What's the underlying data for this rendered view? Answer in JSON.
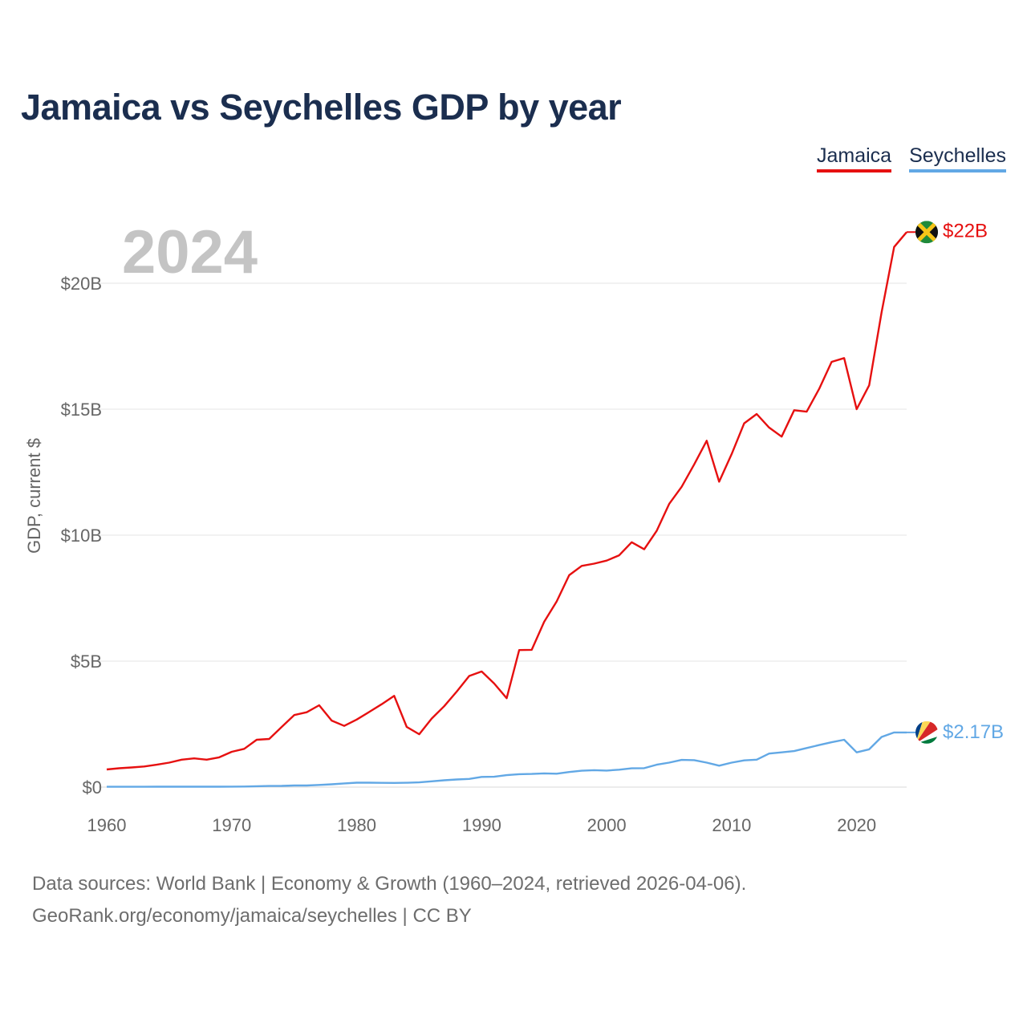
{
  "title": "Jamaica vs Seychelles GDP by year",
  "legend": [
    {
      "name": "Jamaica",
      "color": "#e61010"
    },
    {
      "name": "Seychelles",
      "color": "#62a8e5"
    }
  ],
  "footer": {
    "line1": "Data sources: World Bank | Economy & Growth (1960–2024, retrieved 2026-04-06).",
    "line2": "GeoRank.org/economy/jamaica/seychelles | CC BY"
  },
  "chart_data": {
    "type": "line",
    "title": "Jamaica vs Seychelles GDP by year",
    "xlabel": "",
    "ylabel": "GDP, current $",
    "year_label": "2024",
    "xlim": [
      1960,
      2024
    ],
    "ylim": [
      0,
      20
    ],
    "x_ticks": [
      1960,
      1970,
      1980,
      1990,
      2000,
      2010,
      2020
    ],
    "y_ticks": [
      0,
      5,
      10,
      15,
      20
    ],
    "y_tick_labels": [
      "$0",
      "$5B",
      "$10B",
      "$15B",
      "$20B"
    ],
    "grid": true,
    "x": [
      1960,
      1961,
      1962,
      1963,
      1964,
      1965,
      1966,
      1967,
      1968,
      1969,
      1970,
      1971,
      1972,
      1973,
      1974,
      1975,
      1976,
      1977,
      1978,
      1979,
      1980,
      1981,
      1982,
      1983,
      1984,
      1985,
      1986,
      1987,
      1988,
      1989,
      1990,
      1991,
      1992,
      1993,
      1994,
      1995,
      1996,
      1997,
      1998,
      1999,
      2000,
      2001,
      2002,
      2003,
      2004,
      2005,
      2006,
      2007,
      2008,
      2009,
      2010,
      2011,
      2012,
      2013,
      2014,
      2015,
      2016,
      2017,
      2018,
      2019,
      2020,
      2021,
      2022,
      2023,
      2024
    ],
    "series": [
      {
        "name": "Jamaica",
        "color": "#e61010",
        "end_label": "$22B",
        "values": [
          0.7,
          0.75,
          0.78,
          0.82,
          0.89,
          0.97,
          1.09,
          1.14,
          1.09,
          1.18,
          1.4,
          1.52,
          1.88,
          1.91,
          2.39,
          2.86,
          2.97,
          3.25,
          2.64,
          2.43,
          2.68,
          2.98,
          3.29,
          3.62,
          2.39,
          2.1,
          2.72,
          3.21,
          3.79,
          4.41,
          4.59,
          4.11,
          3.53,
          5.44,
          5.45,
          6.56,
          7.37,
          8.41,
          8.78,
          8.87,
          8.99,
          9.2,
          9.72,
          9.44,
          10.17,
          11.24,
          11.92,
          12.81,
          13.75,
          12.12,
          13.22,
          14.44,
          14.81,
          14.27,
          13.91,
          14.96,
          14.9,
          15.81,
          16.88,
          17.03,
          15.0,
          15.95,
          18.85,
          21.44,
          22.03
        ]
      },
      {
        "name": "Seychelles",
        "color": "#62a8e5",
        "end_label": "$2.17B",
        "values": [
          0.012,
          0.013,
          0.013,
          0.014,
          0.015,
          0.015,
          0.016,
          0.017,
          0.015,
          0.017,
          0.019,
          0.023,
          0.036,
          0.045,
          0.049,
          0.063,
          0.064,
          0.086,
          0.113,
          0.148,
          0.175,
          0.176,
          0.169,
          0.166,
          0.173,
          0.188,
          0.229,
          0.272,
          0.302,
          0.324,
          0.403,
          0.412,
          0.473,
          0.513,
          0.521,
          0.544,
          0.533,
          0.6,
          0.65,
          0.672,
          0.657,
          0.69,
          0.744,
          0.751,
          0.89,
          0.97,
          1.08,
          1.07,
          0.97,
          0.85,
          0.97,
          1.06,
          1.09,
          1.33,
          1.38,
          1.43,
          1.55,
          1.67,
          1.78,
          1.88,
          1.38,
          1.5,
          1.99,
          2.17,
          2.17
        ]
      }
    ]
  }
}
